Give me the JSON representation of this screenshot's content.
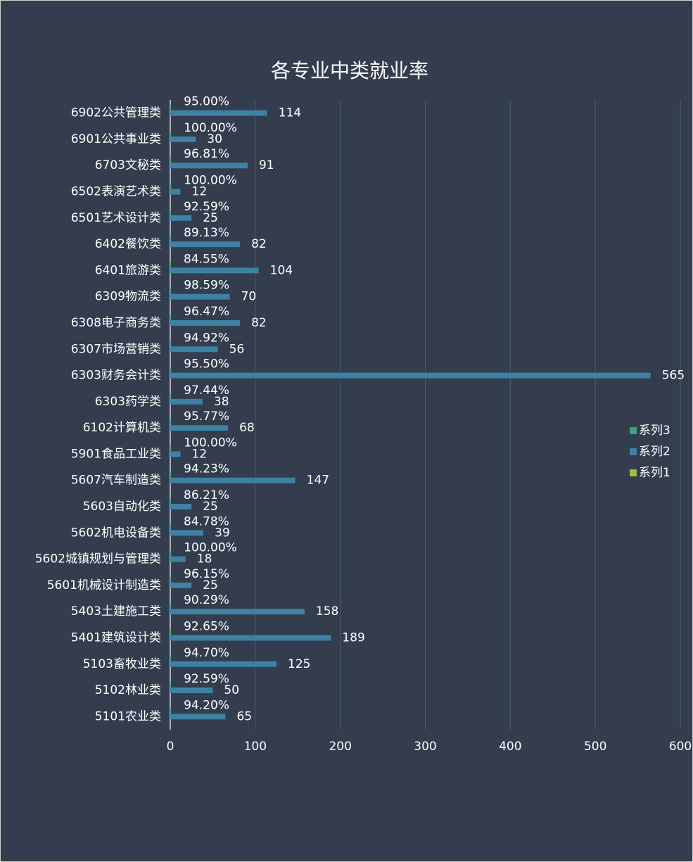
{
  "chart_data": {
    "type": "bar",
    "orientation": "horizontal",
    "title": "各专业中类就业率",
    "categories": [
      "6902公共管理类",
      "6901公共事业类",
      "6703文秘类",
      "6502表演艺术类",
      "6501艺术设计类",
      "6402餐饮类",
      "6401旅游类",
      "6309物流类",
      "6308电子商务类",
      "6307市场营销类",
      "6303财务会计类",
      "6303药学类",
      "6102计算机类",
      "5901食品工业类",
      "5607汽车制造类",
      "5603自动化类",
      "5602机电设备类",
      "5602城镇规划与管理类",
      "5601机械设计制造类",
      "5403土建施工类",
      "5401建筑设计类",
      "5103畜牧业类",
      "5102林业类",
      "5101农业类"
    ],
    "series": [
      {
        "name": "系列3",
        "color": "#3aa57c",
        "values": [
          0.95,
          1.0,
          0.9681,
          1.0,
          0.9259,
          0.8913,
          0.8455,
          0.9859,
          0.9647,
          0.9492,
          0.955,
          0.9744,
          0.9577,
          1.0,
          0.9423,
          0.8621,
          0.8478,
          1.0,
          0.9615,
          0.9029,
          0.9265,
          0.947,
          0.9259,
          0.942
        ],
        "value_labels": [
          "95.00%",
          "100.00%",
          "96.81%",
          "100.00%",
          "92.59%",
          "89.13%",
          "84.55%",
          "98.59%",
          "96.47%",
          "94.92%",
          "95.50%",
          "97.44%",
          "95.77%",
          "100.00%",
          "94.23%",
          "86.21%",
          "84.78%",
          "100.00%",
          "96.15%",
          "90.29%",
          "92.65%",
          "94.70%",
          "92.59%",
          "94.20%"
        ]
      },
      {
        "name": "系列2",
        "color": "#3d81a3",
        "values": [
          114,
          30,
          91,
          12,
          25,
          82,
          104,
          70,
          82,
          56,
          565,
          38,
          68,
          12,
          147,
          25,
          39,
          18,
          25,
          158,
          189,
          125,
          50,
          65
        ]
      },
      {
        "name": "系列1",
        "color": "#a9ba3f",
        "values": [
          null,
          null,
          null,
          null,
          null,
          null,
          null,
          null,
          null,
          null,
          null,
          null,
          null,
          null,
          null,
          null,
          null,
          null,
          null,
          null,
          null,
          null,
          null,
          null
        ]
      }
    ],
    "xlim": [
      0,
      600
    ],
    "xticks": [
      0,
      100,
      200,
      300,
      400,
      500,
      600
    ],
    "grid": true,
    "legend": "right"
  }
}
